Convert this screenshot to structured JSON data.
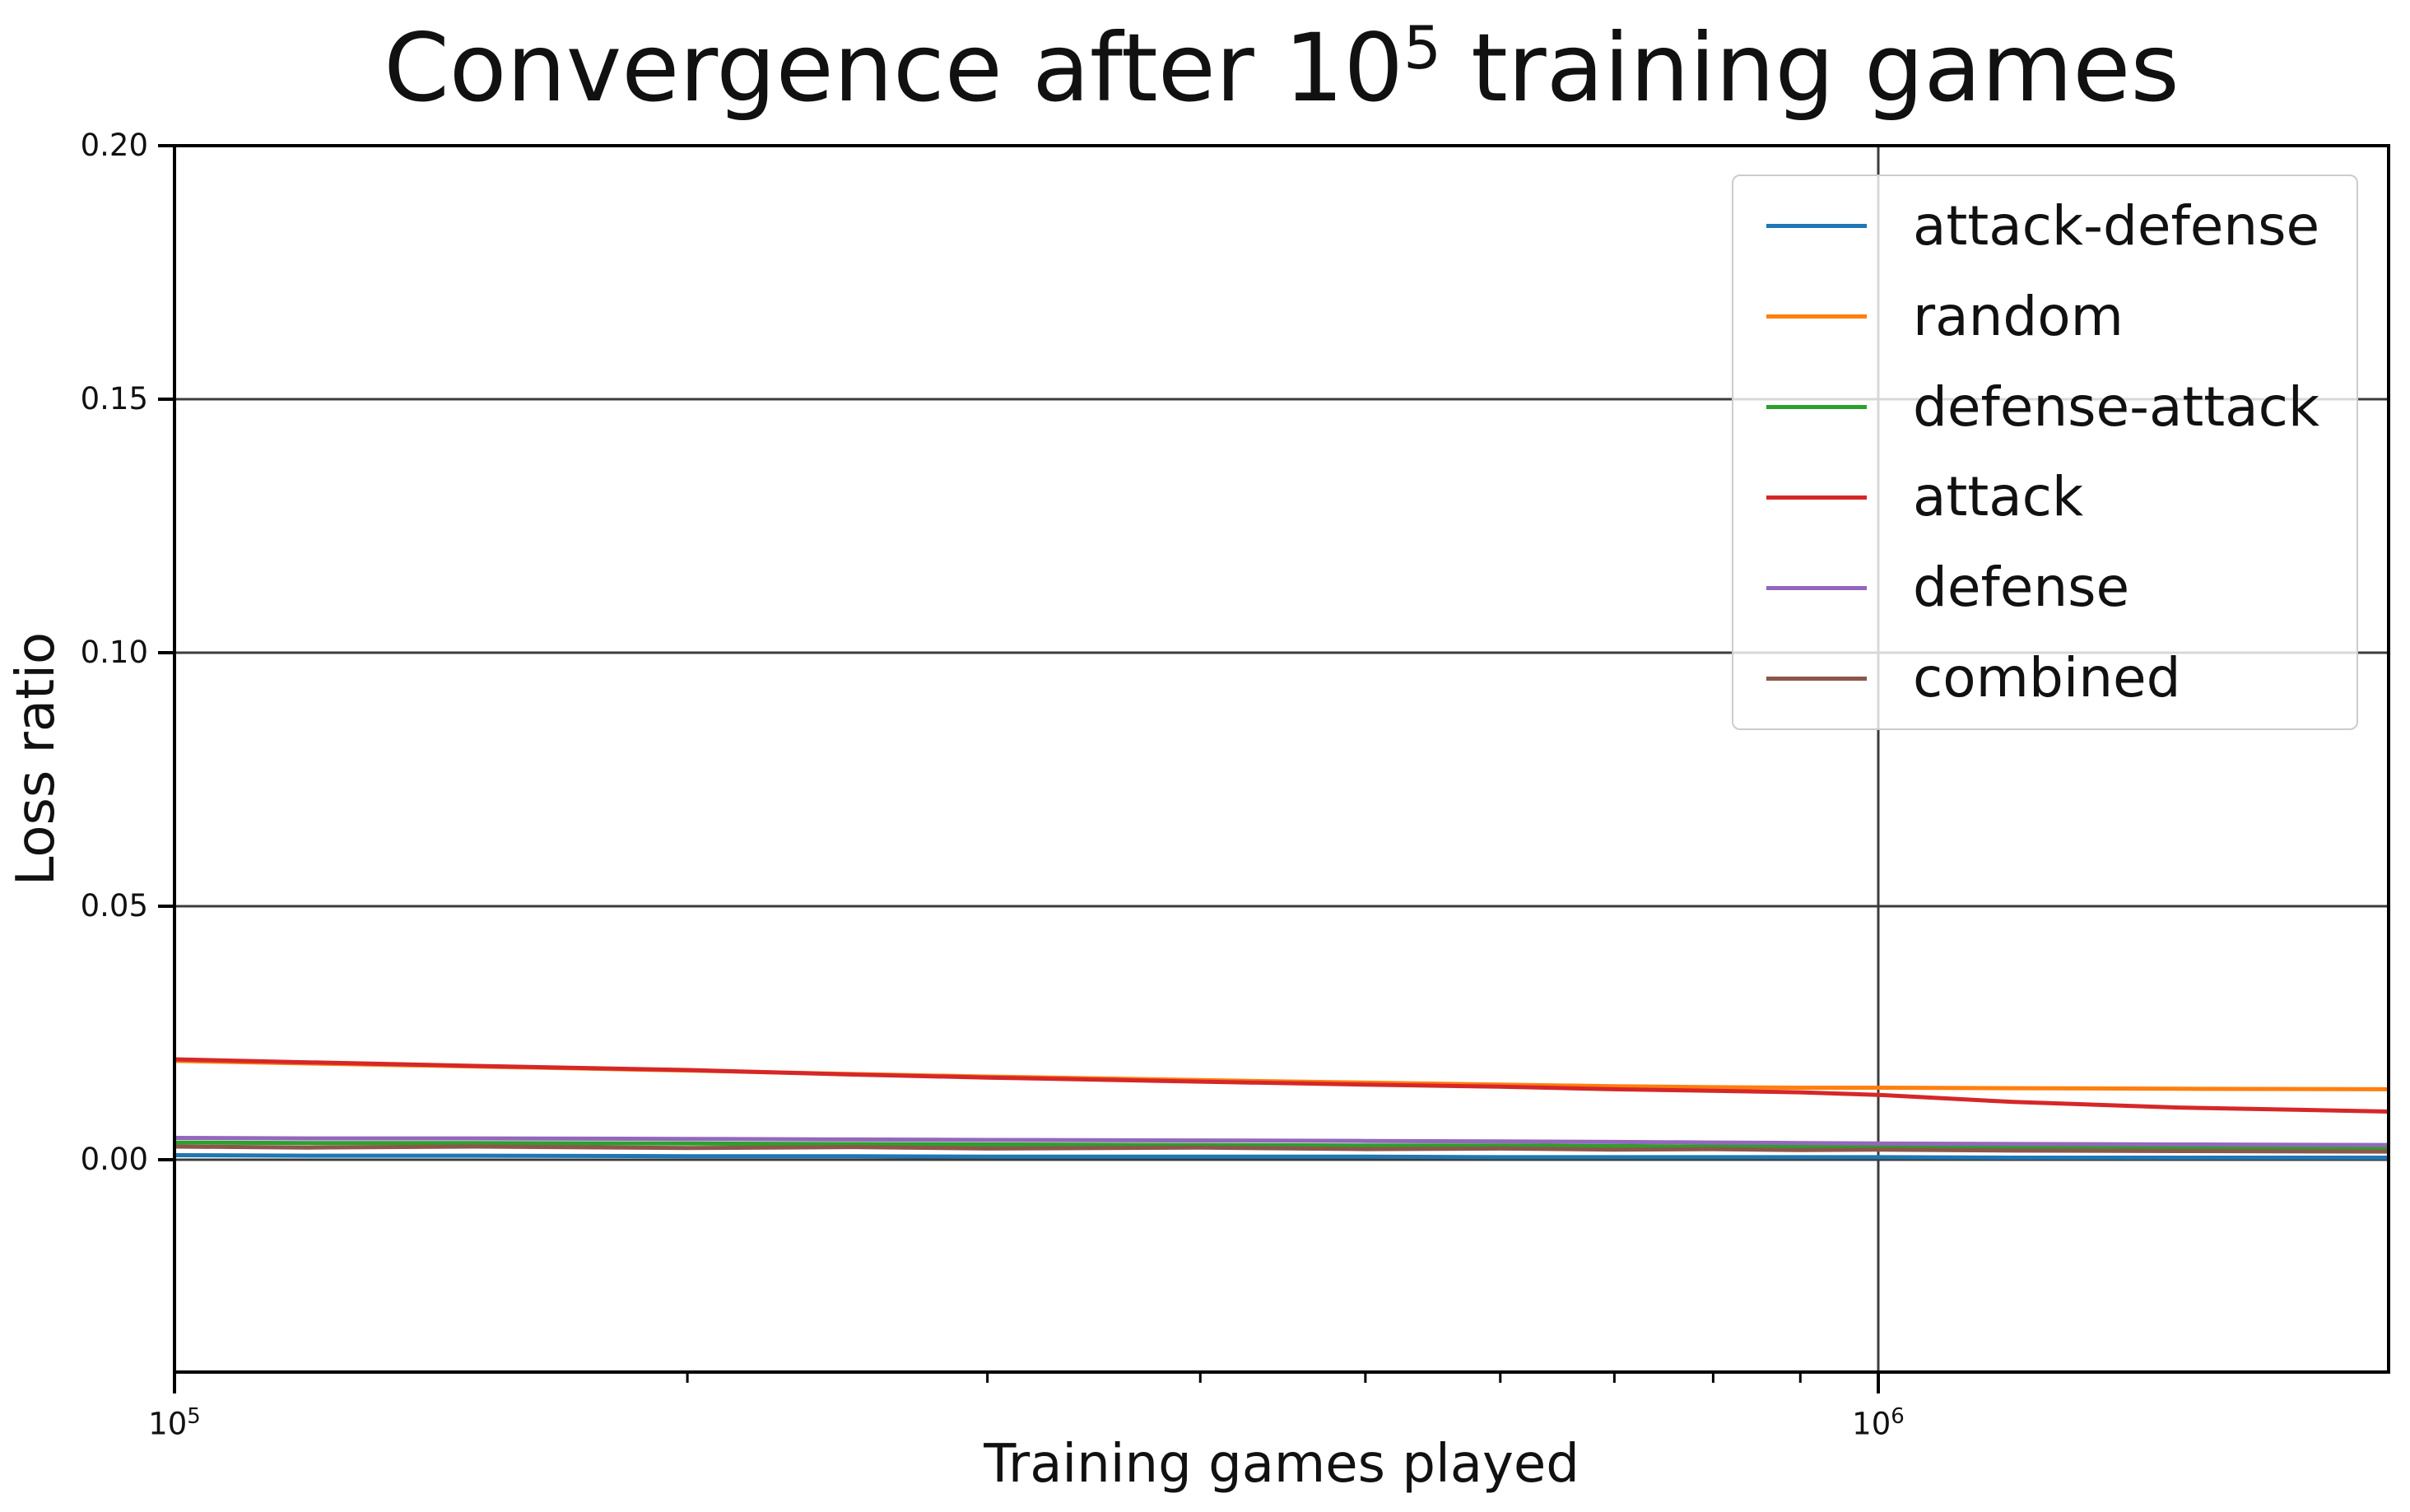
{
  "title": {
    "prefix": "Convergence after 10",
    "sup": "5",
    "suffix": " training games"
  },
  "axes": {
    "x_label": "Training games played",
    "y_label": "Loss ratio"
  },
  "colors": {
    "grid": "#3c3c3c",
    "spine": "#000000",
    "legend_border": "#cccccc",
    "background": "#ffffff"
  },
  "chart_data": {
    "type": "line",
    "title": "Convergence after 10^5 training games",
    "xlabel": "Training games played",
    "ylabel": "Loss ratio",
    "xscale": "log",
    "xlim": [
      100000,
      2000000
    ],
    "ylim": [
      -0.042,
      0.2
    ],
    "grid": true,
    "legend_position": "upper right",
    "y_ticks": [
      {
        "label": "0.20",
        "value": 0.2
      },
      {
        "label": "0.15",
        "value": 0.15
      },
      {
        "label": "0.10",
        "value": 0.1
      },
      {
        "label": "0.05",
        "value": 0.05
      },
      {
        "label": "0.00",
        "value": 0.0
      }
    ],
    "x_major_ticks": [
      {
        "base": "10",
        "exp": "5",
        "value": 100000
      },
      {
        "base": "10",
        "exp": "6",
        "value": 1000000
      }
    ],
    "x_minor_tick_values": [
      200000,
      300000,
      400000,
      500000,
      600000,
      700000,
      800000,
      900000,
      2000000
    ],
    "x": [
      100000,
      120000,
      150000,
      200000,
      250000,
      300000,
      400000,
      500000,
      600000,
      700000,
      800000,
      900000,
      1000000,
      1200000,
      1500000,
      2000000
    ],
    "series": [
      {
        "name": "attack-defense",
        "color": "#1f77b4",
        "values": [
          0.0009,
          0.0008,
          0.0008,
          0.0007,
          0.0007,
          0.0006,
          0.0006,
          0.0006,
          0.0005,
          0.0005,
          0.0005,
          0.0005,
          0.0005,
          0.0004,
          0.0004,
          0.0004
        ]
      },
      {
        "name": "random",
        "color": "#ff7f0e",
        "values": [
          0.0195,
          0.019,
          0.0184,
          0.0176,
          0.0169,
          0.0164,
          0.0157,
          0.0152,
          0.0148,
          0.0145,
          0.0143,
          0.0142,
          0.0142,
          0.0141,
          0.014,
          0.0139
        ]
      },
      {
        "name": "defense-attack",
        "color": "#2ca02c",
        "values": [
          0.0034,
          0.0033,
          0.0033,
          0.0032,
          0.0031,
          0.003,
          0.0029,
          0.0028,
          0.0028,
          0.0027,
          0.0026,
          0.0026,
          0.0025,
          0.0024,
          0.0023,
          0.0022
        ]
      },
      {
        "name": "attack",
        "color": "#d62728",
        "values": [
          0.0198,
          0.0192,
          0.0185,
          0.0177,
          0.0168,
          0.0162,
          0.0154,
          0.0148,
          0.0144,
          0.0139,
          0.0136,
          0.0133,
          0.0128,
          0.0114,
          0.0103,
          0.0095
        ]
      },
      {
        "name": "defense",
        "color": "#9467bd",
        "values": [
          0.0043,
          0.0042,
          0.0042,
          0.0041,
          0.004,
          0.0039,
          0.0038,
          0.0037,
          0.0036,
          0.0035,
          0.0034,
          0.0033,
          0.0032,
          0.0031,
          0.003,
          0.0029
        ]
      },
      {
        "name": "combined",
        "color": "#8c564b",
        "values": [
          0.0026,
          0.0024,
          0.0026,
          0.0023,
          0.0025,
          0.0022,
          0.0024,
          0.0021,
          0.0022,
          0.002,
          0.0021,
          0.0019,
          0.002,
          0.0018,
          0.0017,
          0.0016
        ]
      }
    ]
  }
}
